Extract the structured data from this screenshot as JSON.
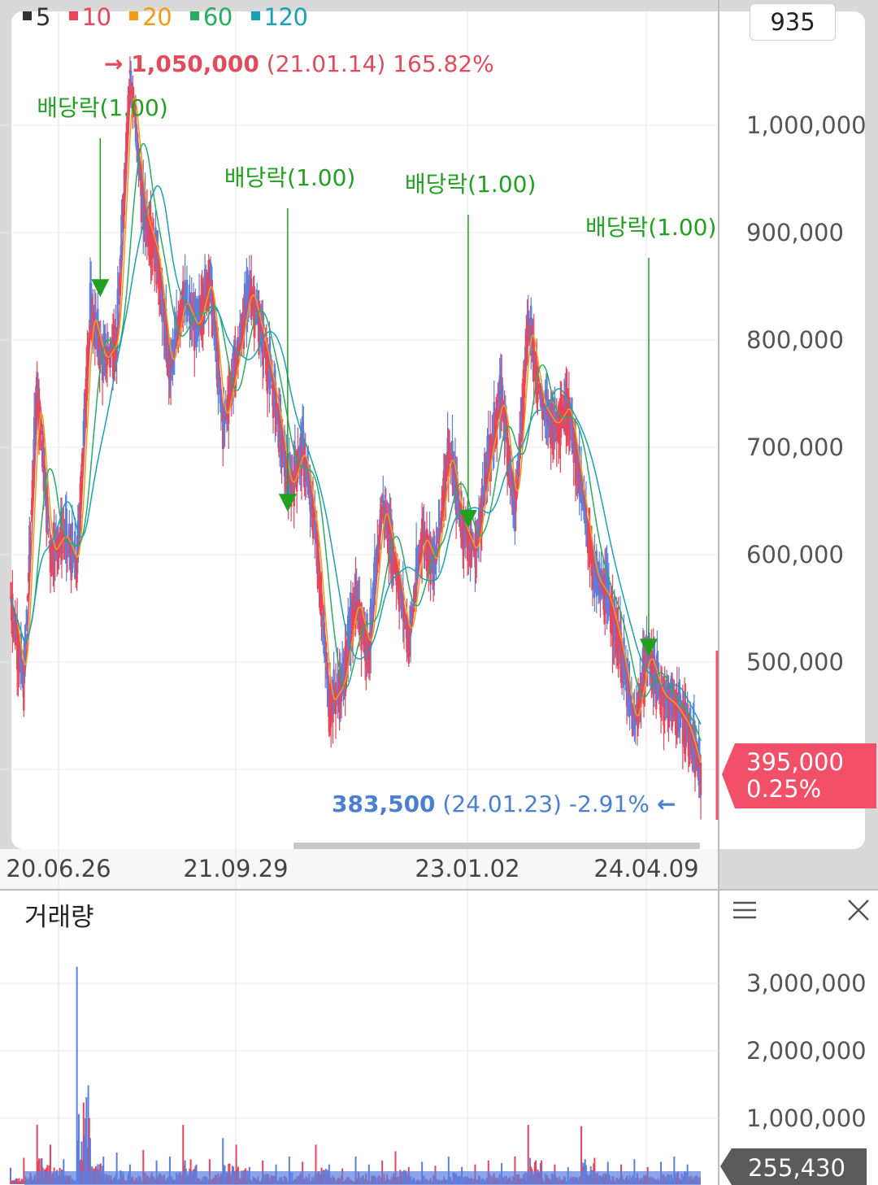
{
  "legend": [
    {
      "label": "5",
      "color": "#333333"
    },
    {
      "label": "10",
      "color": "#e8445a"
    },
    {
      "label": "20",
      "color": "#f39c12"
    },
    {
      "label": "60",
      "color": "#27ae60"
    },
    {
      "label": "120",
      "color": "#17a2b8"
    }
  ],
  "count_box": "935",
  "high_marker": {
    "arrow": "→",
    "value": "1,050,000",
    "date": "(21.01.14)",
    "pct": "165.82%",
    "color": "#e24b5b"
  },
  "low_marker": {
    "arrow": "←",
    "value": "383,500",
    "date": "(24.01.23)",
    "pct": "-2.91%",
    "color": "#4a7fd1"
  },
  "current": {
    "price": "395,000",
    "pct": "0.25%",
    "color": "#f25068"
  },
  "volume_current": "255,430",
  "volume_title": "거래량",
  "menu_icon": "menu-icon",
  "close_icon": "close-icon",
  "chart_data": [
    {
      "type": "line",
      "subtype": "candlestick-with-moving-averages",
      "x_tick_labels": [
        "20.06.26",
        "21.09.29",
        "23.01.02",
        "24.04.09"
      ],
      "y_tick_labels": [
        "1,000,000",
        "900,000",
        "800,000",
        "700,000",
        "600,000",
        "500,000"
      ],
      "ylim": [
        380000,
        1070000
      ],
      "grid": true,
      "legend_position": "top-left",
      "moving_average_periods": [
        5,
        10,
        20,
        60,
        120
      ],
      "annotations": [
        {
          "label": "배당락(1.00)",
          "x": 0.135,
          "price": 840000
        },
        {
          "label": "배당락(1.00)",
          "x": 0.405,
          "price": 640000
        },
        {
          "label": "배당락(1.00)",
          "x": 0.665,
          "price": 625000
        },
        {
          "label": "배당락(1.00)",
          "x": 0.925,
          "price": 505000
        }
      ],
      "series": [
        {
          "values": [
            560000,
            480000,
            760000,
            600000,
            620000,
            590000,
            830000,
            780000,
            800000,
            1050000,
            920000,
            880000,
            770000,
            840000,
            810000,
            860000,
            720000,
            780000,
            850000,
            800000,
            740000,
            660000,
            700000,
            620000,
            460000,
            480000,
            560000,
            510000,
            650000,
            590000,
            520000,
            620000,
            590000,
            700000,
            630000,
            600000,
            690000,
            750000,
            640000,
            820000,
            740000,
            720000,
            740000,
            660000,
            580000,
            560000,
            510000,
            440000,
            510000,
            470000,
            460000,
            440000,
            395000
          ]
        }
      ]
    },
    {
      "type": "bar",
      "title": "거래량",
      "y_tick_labels": [
        "3,000,000",
        "2,000,000",
        "1,000,000"
      ],
      "ylim": [
        0,
        3400000
      ],
      "grid": true,
      "values": [
        250000,
        400000,
        900000,
        600000,
        380000,
        3300000,
        700000,
        420000,
        480000,
        300000,
        520000,
        360000,
        420000,
        900000,
        300000,
        380000,
        700000,
        600000,
        260000,
        360000,
        300000,
        420000,
        340000,
        600000,
        300000,
        240000,
        420000,
        300000,
        360000,
        500000,
        260000,
        340000,
        280000,
        420000,
        260000,
        300000,
        360000,
        320000,
        420000,
        900000,
        360000,
        300000,
        260000,
        880000,
        400000,
        340000,
        300000,
        380000,
        260000,
        340000,
        420000,
        300000,
        255430
      ]
    }
  ]
}
